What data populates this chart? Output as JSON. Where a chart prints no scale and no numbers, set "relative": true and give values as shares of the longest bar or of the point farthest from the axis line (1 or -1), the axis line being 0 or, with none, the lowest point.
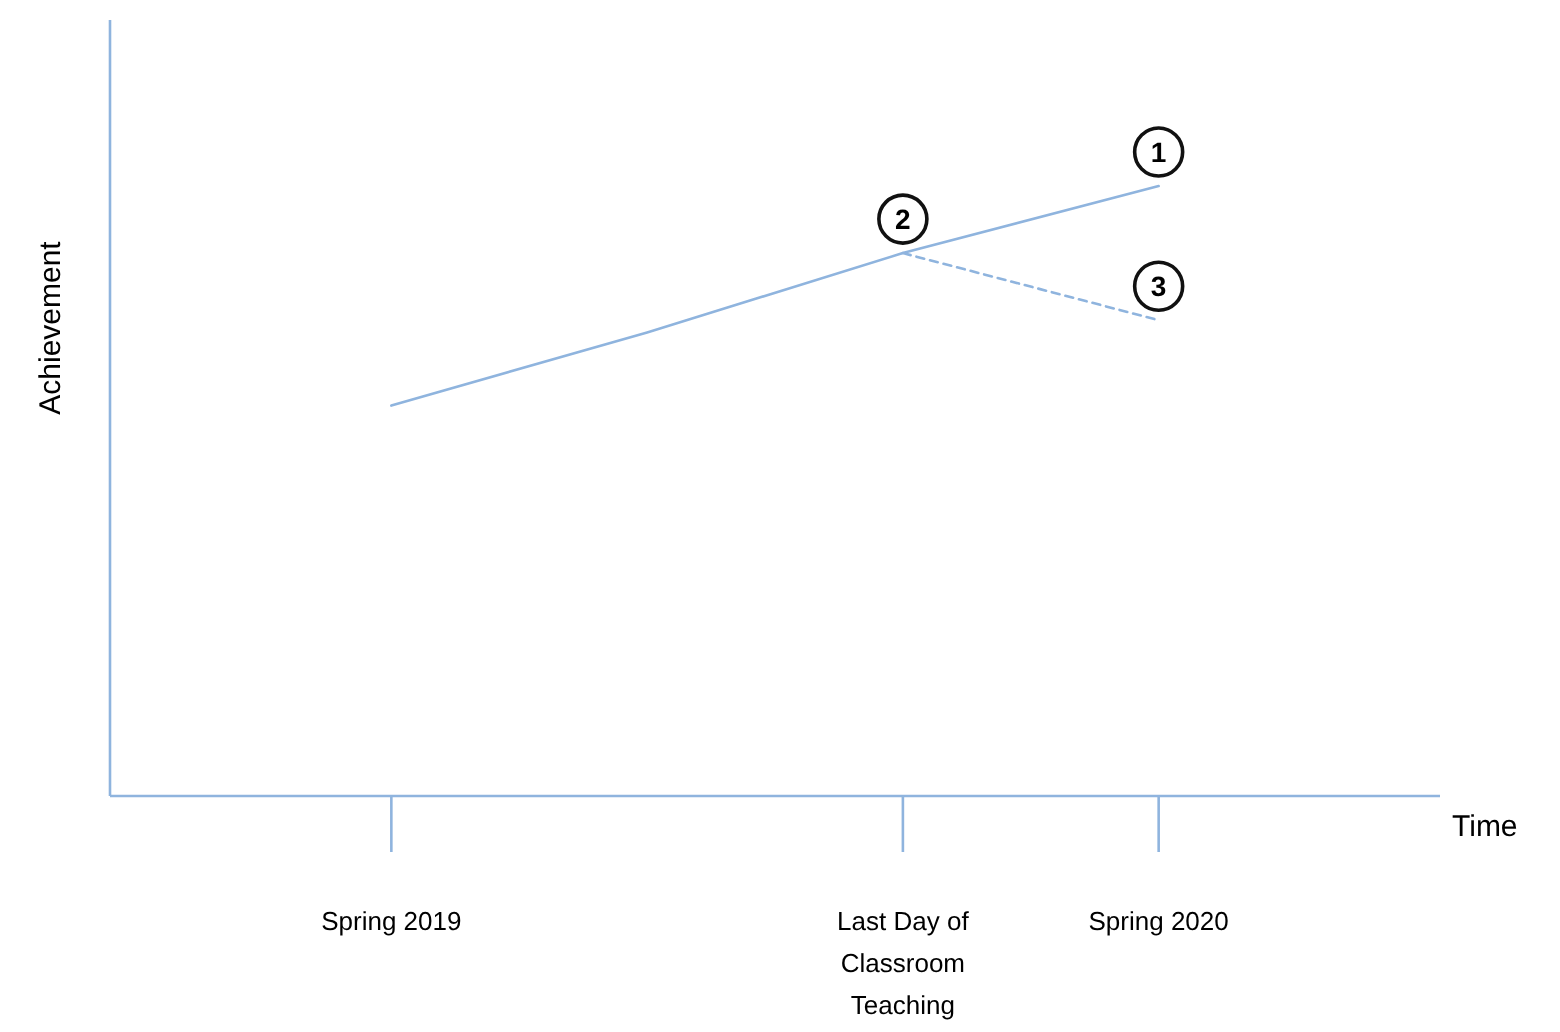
{
  "chart_data": {
    "type": "line",
    "relative": true,
    "xlabel": "Time",
    "ylabel": "Achievement",
    "tick_labels": "x",
    "categories": [
      "Spring 2019",
      null,
      "Last Day of Classroom Teaching",
      "Spring 2020"
    ],
    "series": [
      {
        "color": "#8fb4de",
        "line_style": "solid",
        "values": [
          0.64,
          0.76,
          0.89,
          1
        ]
      },
      {
        "color": "#8fb4de",
        "line_style": "dashed",
        "values": [
          null,
          null,
          0.89,
          0.78
        ]
      }
    ],
    "annotations": [
      {
        "text": "1",
        "x": "Spring 2020",
        "y": 1
      },
      {
        "text": "2",
        "x": "Last Day of Classroom Teaching",
        "y": 0.89
      },
      {
        "text": "3",
        "x": "Spring 2020",
        "y": 0.78
      }
    ]
  }
}
